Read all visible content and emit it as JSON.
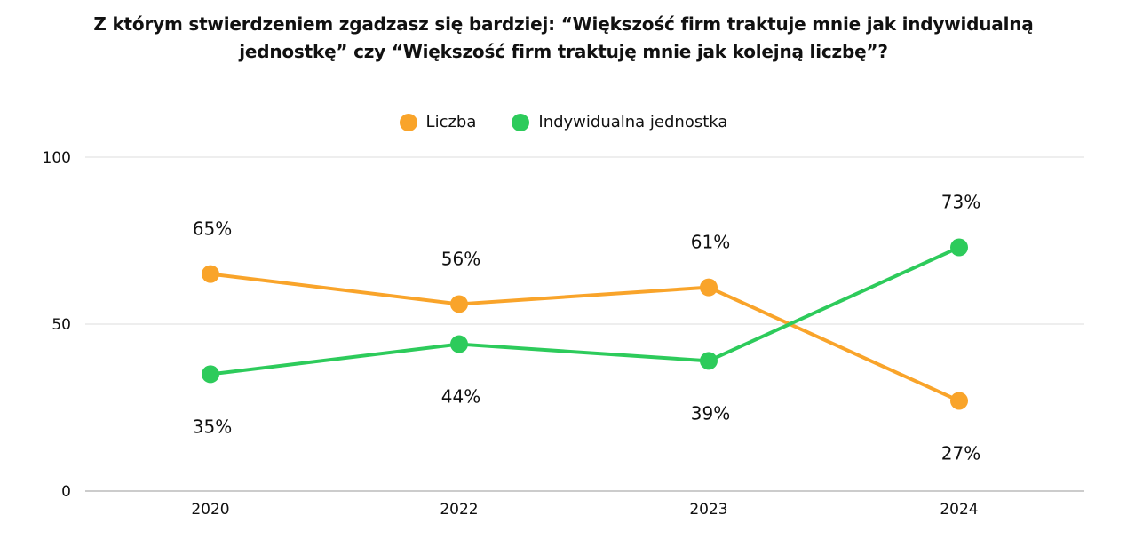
{
  "title": {
    "line1": "Z którym stwierdzeniem zgadzasz się bardziej: “Większość firm traktuje mnie jak indywidualną",
    "line2": "jednostkę” czy “Większość firm traktuję mnie jak kolejną liczbę”?"
  },
  "chart_data": {
    "type": "line",
    "title": "Z którym stwierdzeniem zgadzasz się bardziej: “Większość firm traktuje mnie jak indywidualną jednostkę” czy “Większość firm traktuję mnie jak kolejną liczbę”?",
    "categories": [
      "2020",
      "2022",
      "2023",
      "2024"
    ],
    "series": [
      {
        "name": "Liczba",
        "color": "#F9A42A",
        "values": [
          65,
          56,
          61,
          27
        ],
        "labels": [
          "65%",
          "56%",
          "61%",
          "27%"
        ]
      },
      {
        "name": "Indywidualna jednostka",
        "color": "#2DCB5B",
        "values": [
          35,
          44,
          39,
          73
        ],
        "labels": [
          "35%",
          "44%",
          "39%",
          "73%"
        ]
      }
    ],
    "ylim": [
      0,
      100
    ],
    "yticks": [
      "0",
      "50",
      "100"
    ],
    "xlabel": "",
    "ylabel": "",
    "grid": true,
    "legend_position": "top-center"
  }
}
